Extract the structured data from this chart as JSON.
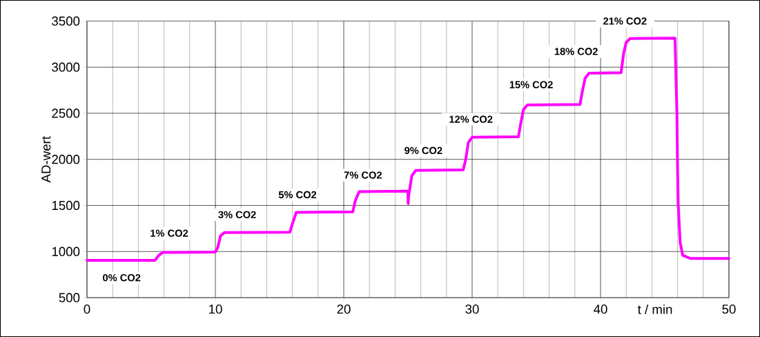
{
  "chart_data": {
    "type": "line",
    "xlabel": "t / min",
    "ylabel": "AD-wert",
    "xlim": [
      0,
      50
    ],
    "xticks": [
      0,
      10,
      20,
      30,
      40,
      50
    ],
    "ylim": [
      500,
      3500
    ],
    "yticks": [
      500,
      1000,
      1500,
      2000,
      2500,
      3000,
      3500
    ],
    "grid": true,
    "series": [
      {
        "color": "#ff00ff",
        "x": [
          0,
          5.3,
          5.6,
          5.9,
          10.0,
          10.2,
          10.4,
          10.7,
          15.8,
          16.0,
          16.3,
          20.7,
          20.9,
          21.2,
          25.0,
          25.02,
          25.05,
          25.3,
          25.6,
          29.3,
          29.5,
          29.7,
          30.0,
          33.6,
          33.8,
          34.0,
          34.3,
          38.4,
          38.6,
          38.8,
          39.1,
          41.6,
          41.8,
          42.0,
          42.3,
          45.8,
          45.95,
          46.0,
          46.05,
          46.2,
          46.4,
          47.0,
          50
        ],
        "values": [
          905,
          905,
          960,
          990,
          995,
          1050,
          1170,
          1205,
          1210,
          1300,
          1425,
          1430,
          1550,
          1650,
          1655,
          1520,
          1600,
          1820,
          1880,
          1885,
          2000,
          2180,
          2240,
          2245,
          2400,
          2540,
          2590,
          2595,
          2750,
          2880,
          2935,
          2940,
          3150,
          3270,
          3310,
          3315,
          2500,
          1880,
          1510,
          1100,
          960,
          925,
          925
        ]
      }
    ],
    "annotations": [
      "0% CO2",
      "1% CO2",
      "3% CO2",
      "5% CO2",
      "7% CO2",
      "9% CO2",
      "12% CO2",
      "15% CO2",
      "18% CO2",
      "21% CO2"
    ]
  }
}
